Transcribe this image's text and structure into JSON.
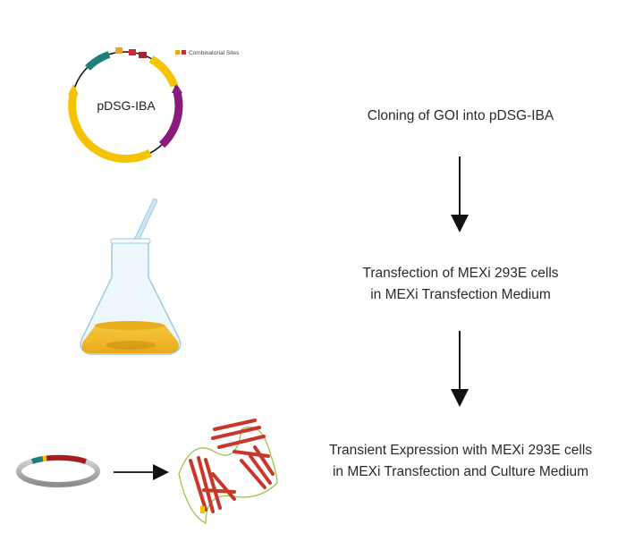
{
  "plasmid": {
    "name": "pDSG-IBA",
    "legend_label": "Combinatorial Sites"
  },
  "steps": [
    {
      "lines": [
        "Cloning of GOI into pDSG-IBA"
      ]
    },
    {
      "lines": [
        "Transfection of MEXi 293E cells",
        "in MEXi Transfection Medium"
      ]
    },
    {
      "lines": [
        "Transient Expression with MEXi 293E cells",
        "in MEXi Transfection and Culture Medium"
      ]
    }
  ],
  "colors": {
    "yellow": "#f5c400",
    "teal": "#1e7f7a",
    "purple": "#8a1a7e",
    "red": "#d9233b",
    "orange": "#f2a51c",
    "medium": "#e9ad1c",
    "protein": "#c9362a"
  }
}
